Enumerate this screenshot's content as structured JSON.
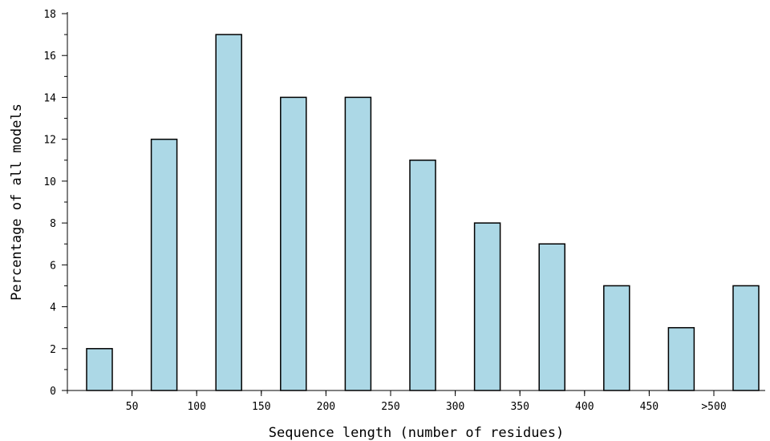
{
  "chart_data": {
    "type": "bar",
    "title": "",
    "xlabel": "Sequence length (number of residues)",
    "ylabel": "Percentage of all models",
    "bar_values": [
      2,
      12,
      17,
      14,
      14,
      11,
      8,
      7,
      5,
      3,
      5
    ],
    "x_tick_labels": [
      "50",
      "100",
      "150",
      "200",
      "250",
      "300",
      "350",
      "400",
      "450",
      ">500"
    ],
    "y_ticks": [
      0,
      2,
      4,
      6,
      8,
      10,
      12,
      14,
      16,
      18
    ],
    "ylim": [
      0,
      18
    ],
    "grid": false,
    "legend": "none",
    "bar_color": "#acd8e6",
    "bar_edge_color": "#000000"
  }
}
